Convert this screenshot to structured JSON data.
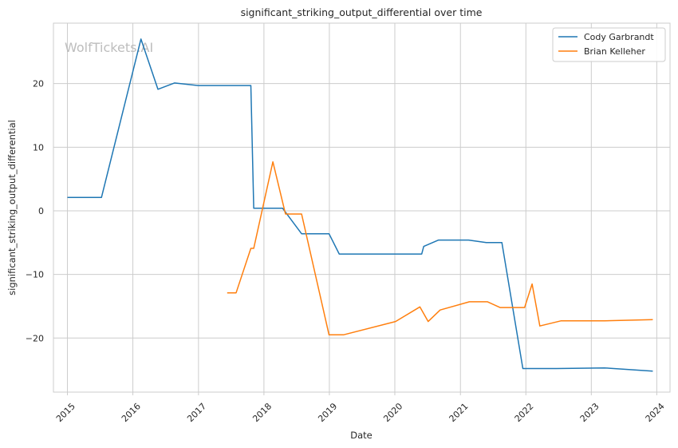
{
  "chart_data": {
    "type": "line",
    "title": "significant_striking_output_differential over time",
    "xlabel": "Date",
    "ylabel": "significant_striking_output_differential",
    "watermark": "WolfTickets.AI",
    "x_ticks": [
      "2015",
      "2016",
      "2017",
      "2018",
      "2019",
      "2020",
      "2021",
      "2022",
      "2023",
      "2024"
    ],
    "y_ticks": [
      "−20",
      "−10",
      "0",
      "10",
      "20"
    ],
    "xlim": [
      "2014-10-15",
      "2024-03-15"
    ],
    "ylim": [
      -28.5,
      29.5
    ],
    "grid": true,
    "legend_position": "top-right",
    "series": [
      {
        "name": "Cody Garbrandt",
        "color": "#1f77b4",
        "points": [
          [
            "2015-01-01",
            2.1
          ],
          [
            "2015-07-10",
            2.1
          ],
          [
            "2016-02-15",
            27.0
          ],
          [
            "2016-05-20",
            19.1
          ],
          [
            "2016-08-20",
            20.1
          ],
          [
            "2016-12-31",
            19.7
          ],
          [
            "2017-10-20",
            19.7
          ],
          [
            "2017-11-05",
            0.4
          ],
          [
            "2018-04-15",
            0.4
          ],
          [
            "2018-07-30",
            -3.6
          ],
          [
            "2018-12-30",
            -3.6
          ],
          [
            "2019-02-25",
            -6.8
          ],
          [
            "2020-05-30",
            -6.8
          ],
          [
            "2020-06-10",
            -5.6
          ],
          [
            "2020-09-01",
            -4.6
          ],
          [
            "2021-02-15",
            -4.6
          ],
          [
            "2021-05-25",
            -5.0
          ],
          [
            "2021-08-20",
            -5.0
          ],
          [
            "2021-12-15",
            -24.8
          ],
          [
            "2022-06-20",
            -24.8
          ],
          [
            "2023-03-15",
            -24.7
          ],
          [
            "2023-12-10",
            -25.2
          ]
        ]
      },
      {
        "name": "Brian Kelleher",
        "color": "#ff7f0e",
        "points": [
          [
            "2017-06-10",
            -12.9
          ],
          [
            "2017-07-30",
            -12.9
          ],
          [
            "2017-10-20",
            -5.9
          ],
          [
            "2017-11-05",
            -5.9
          ],
          [
            "2018-02-20",
            7.7
          ],
          [
            "2018-05-01",
            -0.5
          ],
          [
            "2018-07-30",
            -0.5
          ],
          [
            "2018-12-30",
            -19.5
          ],
          [
            "2019-03-20",
            -19.5
          ],
          [
            "2020-01-05",
            -17.4
          ],
          [
            "2020-05-20",
            -15.1
          ],
          [
            "2020-07-05",
            -17.4
          ],
          [
            "2020-09-10",
            -15.6
          ],
          [
            "2021-02-20",
            -14.3
          ],
          [
            "2021-06-01",
            -14.3
          ],
          [
            "2021-08-10",
            -15.2
          ],
          [
            "2021-12-25",
            -15.2
          ],
          [
            "2022-02-05",
            -11.5
          ],
          [
            "2022-03-20",
            -18.1
          ],
          [
            "2022-07-15",
            -17.3
          ],
          [
            "2023-03-15",
            -17.3
          ],
          [
            "2023-12-10",
            -17.1
          ]
        ]
      }
    ]
  }
}
